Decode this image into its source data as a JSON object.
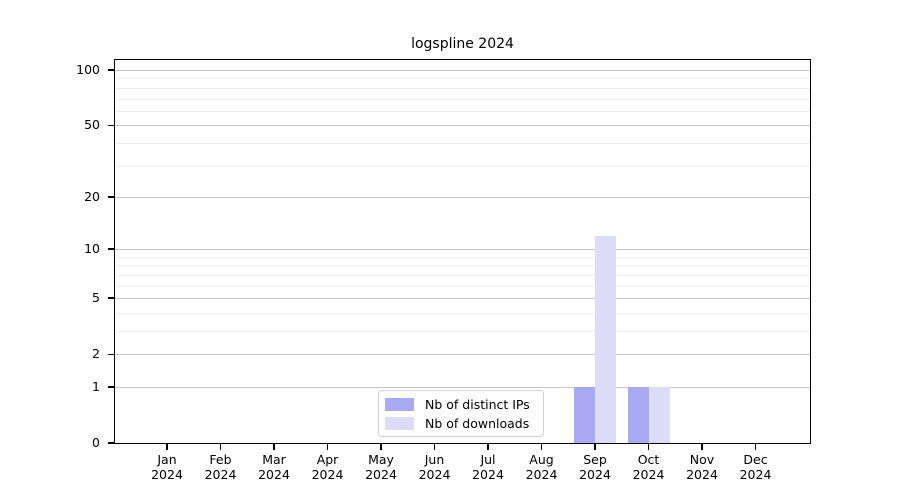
{
  "title": "logspline 2024",
  "chart_data": {
    "type": "bar",
    "title": "logspline 2024",
    "categories": [
      "Jan",
      "Feb",
      "Mar",
      "Apr",
      "May",
      "Jun",
      "Jul",
      "Aug",
      "Sep",
      "Oct",
      "Nov",
      "Dec"
    ],
    "year": "2024",
    "series": [
      {
        "name": "Nb of distinct IPs",
        "color": "#aaaaf2",
        "values": [
          0,
          0,
          0,
          0,
          0,
          0,
          0,
          0,
          1,
          1,
          0,
          0
        ]
      },
      {
        "name": "Nb of downloads",
        "color": "#dcdcf8",
        "values": [
          0,
          0,
          0,
          0,
          0,
          0,
          0,
          0,
          12,
          1,
          0,
          0
        ]
      }
    ],
    "y_scale": "log1p",
    "y_axis_max": 113.3,
    "ylim": [
      0,
      113.3
    ],
    "y_ticks": [
      {
        "v": 0,
        "label": "0"
      },
      {
        "v": 1,
        "label": "1"
      },
      {
        "v": 2,
        "label": "2"
      },
      {
        "v": 5,
        "label": "5"
      },
      {
        "v": 10,
        "label": "10"
      },
      {
        "v": 20,
        "label": "20"
      },
      {
        "v": 50,
        "label": "50"
      },
      {
        "v": 100,
        "label": "100"
      }
    ],
    "y_minor_ticks": [
      3,
      4,
      6,
      7,
      8,
      9,
      30,
      40,
      60,
      70,
      80,
      90
    ],
    "grid": true,
    "legend_position": "bottom-center-inside",
    "colors": {
      "major_grid": "#c8c8c8",
      "minor_grid": "#efefef",
      "axis": "#000000",
      "legend_border": "#d2d2d2",
      "background": "#ffffff"
    }
  }
}
